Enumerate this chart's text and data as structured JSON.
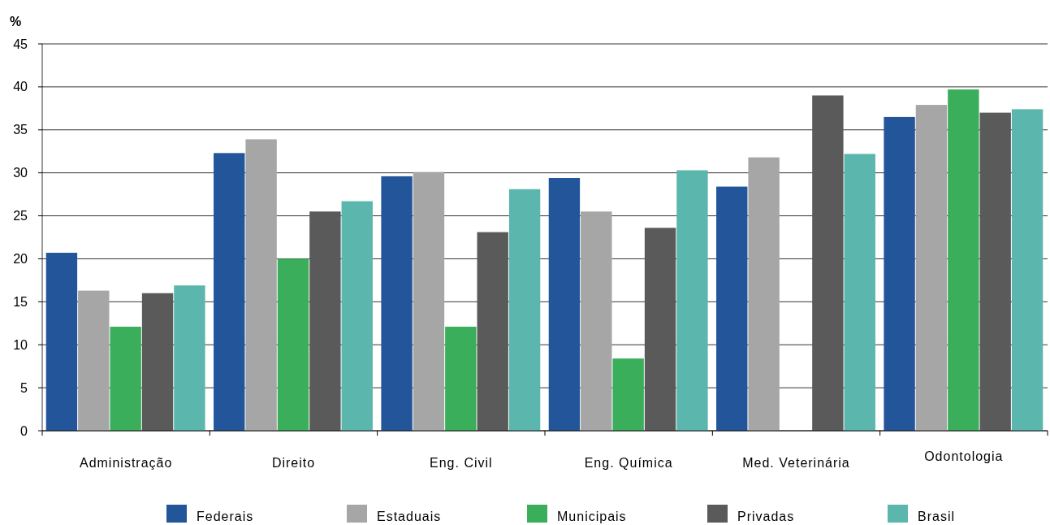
{
  "chart_data": {
    "type": "bar",
    "ylabel": "%",
    "categories": [
      "Administração",
      "Direito",
      "Eng. Civil",
      "Eng. Química",
      "Med. Veterinária",
      "Odontologia"
    ],
    "series": [
      {
        "name": "Federais",
        "color": "#23559b",
        "values": [
          20.7,
          32.3,
          29.6,
          29.4,
          28.4,
          36.5
        ]
      },
      {
        "name": "Estaduais",
        "color": "#a6a6a6",
        "values": [
          16.3,
          33.9,
          30.1,
          25.5,
          31.8,
          37.9
        ]
      },
      {
        "name": "Municipais",
        "color": "#3aae5a",
        "values": [
          12.1,
          20.0,
          12.1,
          8.4,
          null,
          39.7
        ]
      },
      {
        "name": "Privadas",
        "color": "#5a5a5a",
        "values": [
          16.0,
          25.5,
          23.1,
          23.6,
          39.0,
          37.0
        ]
      },
      {
        "name": "Brasil",
        "color": "#5bb7ad",
        "values": [
          16.9,
          26.7,
          28.1,
          30.3,
          32.2,
          37.4
        ]
      }
    ],
    "ylim": [
      0,
      45
    ],
    "yticks": [
      0,
      5,
      10,
      15,
      20,
      25,
      30,
      35,
      40,
      45
    ],
    "grid": "y",
    "legend": "bottom"
  }
}
